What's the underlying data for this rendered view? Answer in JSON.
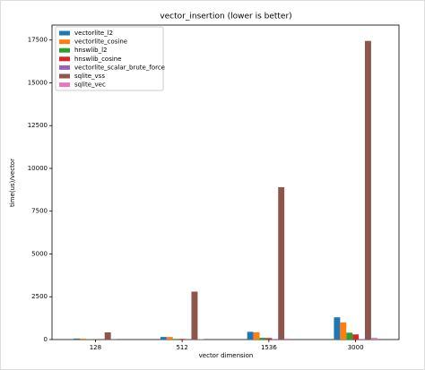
{
  "chart_data": {
    "type": "bar",
    "title": "vector_insertion (lower is better)",
    "x_label": "vector dimension",
    "y_label": "time(us)/vector",
    "categories": [
      "128",
      "512",
      "1536",
      "3000"
    ],
    "series": [
      {
        "name": "vectorlite_l2",
        "color": "#1f77b4",
        "values": [
          60,
          150,
          450,
          1300
        ]
      },
      {
        "name": "vectorlite_cosine",
        "color": "#ff7f0e",
        "values": [
          60,
          150,
          420,
          1000
        ]
      },
      {
        "name": "hnswlib_l2",
        "color": "#2ca02c",
        "values": [
          20,
          40,
          100,
          400
        ]
      },
      {
        "name": "hnswlib_cosine",
        "color": "#d62728",
        "values": [
          20,
          40,
          90,
          300
        ]
      },
      {
        "name": "vectorlite_scalar_brute_force",
        "color": "#9467bd",
        "values": [
          5,
          10,
          20,
          30
        ]
      },
      {
        "name": "sqlite_vss",
        "color": "#8c564b",
        "values": [
          420,
          2800,
          8900,
          17450
        ]
      },
      {
        "name": "sqlite_vec",
        "color": "#e377c2",
        "values": [
          10,
          20,
          60,
          100
        ]
      }
    ],
    "ylim": [
      0,
      18375
    ],
    "yticks": [
      0,
      2500,
      5000,
      7500,
      10000,
      12500,
      15000,
      17500
    ],
    "grid": false,
    "legend": "upper left"
  }
}
